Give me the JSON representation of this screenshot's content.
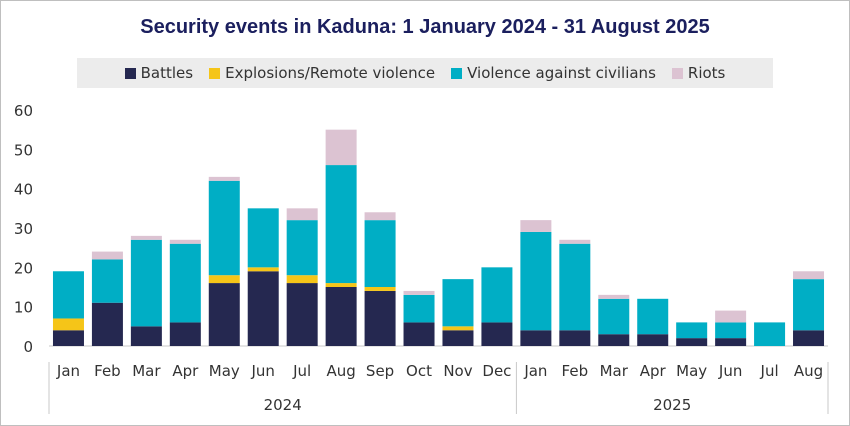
{
  "colors": {
    "battles": "#252850",
    "explosions": "#f5c518",
    "violence": "#00aec5",
    "riots": "#dcc3d2",
    "title": "#1b1f5e"
  },
  "chart_data": {
    "type": "bar",
    "stacked": true,
    "title": "Security events in Kaduna: 1 January 2024 - 31 August 2025",
    "xlabel": "",
    "ylabel": "",
    "ylim": [
      0,
      60
    ],
    "yticks": [
      "0",
      "10",
      "20",
      "30",
      "40",
      "50",
      "60"
    ],
    "legend_position": "top",
    "categories": [
      "Jan",
      "Feb",
      "Mar",
      "Apr",
      "May",
      "Jun",
      "Jul",
      "Aug",
      "Sep",
      "Oct",
      "Nov",
      "Dec",
      "Jan",
      "Feb",
      "Mar",
      "Apr",
      "May",
      "Jun",
      "Jul",
      "Aug"
    ],
    "year_groups": [
      {
        "label": "2024",
        "count": 12
      },
      {
        "label": "2025",
        "count": 8
      }
    ],
    "series": [
      {
        "name": "Battles",
        "color_key": "battles",
        "values": [
          4,
          11,
          5,
          6,
          16,
          19,
          16,
          15,
          14,
          6,
          4,
          6,
          4,
          4,
          3,
          3,
          2,
          2,
          0,
          4
        ]
      },
      {
        "name": "Explosions/Remote violence",
        "color_key": "explosions",
        "values": [
          3,
          0,
          0,
          0,
          2,
          1,
          2,
          1,
          1,
          0,
          1,
          0,
          0,
          0,
          0,
          0,
          0,
          0,
          0,
          0
        ]
      },
      {
        "name": "Violence against civilians",
        "color_key": "violence",
        "values": [
          12,
          11,
          22,
          20,
          24,
          15,
          14,
          30,
          17,
          7,
          12,
          14,
          25,
          22,
          9,
          9,
          4,
          4,
          6,
          13
        ]
      },
      {
        "name": "Riots",
        "color_key": "riots",
        "values": [
          0,
          2,
          1,
          1,
          1,
          0,
          3,
          9,
          2,
          1,
          0,
          0,
          3,
          1,
          1,
          0,
          0,
          3,
          0,
          2
        ]
      }
    ]
  }
}
